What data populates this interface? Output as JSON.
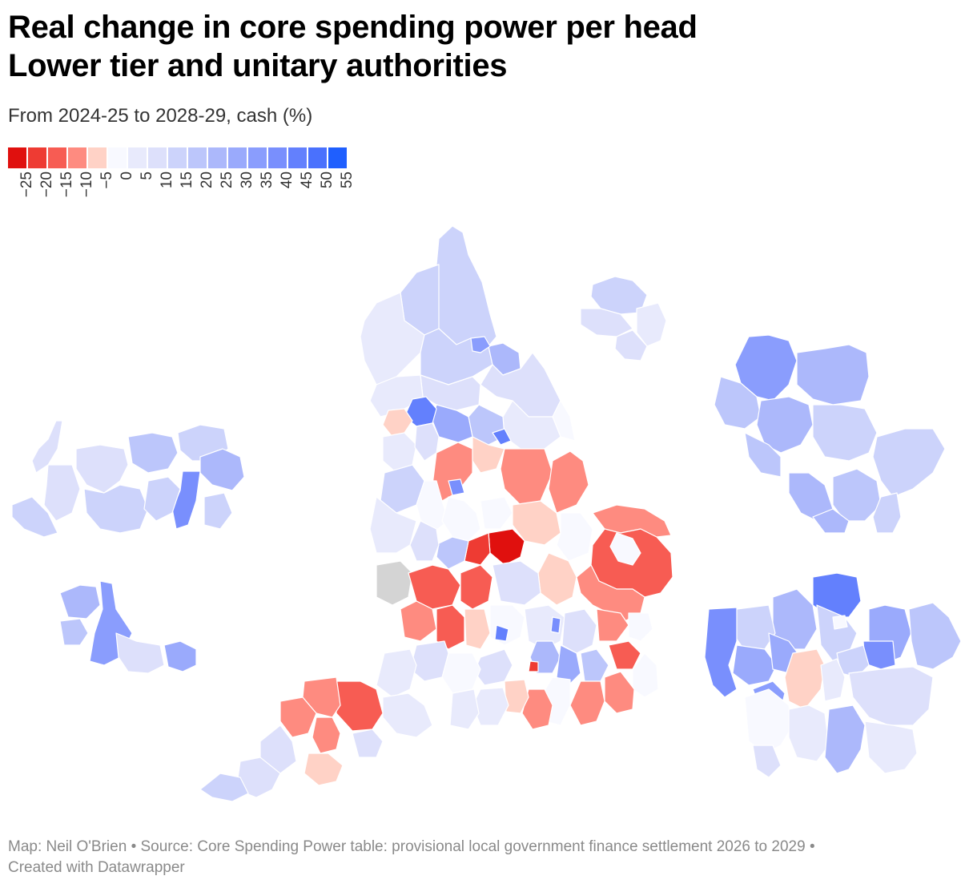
{
  "header": {
    "title_line1": "Real change in core spending power per head",
    "title_line2": "Lower tier and unitary authorities",
    "subtitle": "From 2024-25 to 2028-29, cash (%)"
  },
  "legend": {
    "bins": [
      {
        "label": "−25",
        "color": "#e0100e"
      },
      {
        "label": "−20",
        "color": "#ee3b33"
      },
      {
        "label": "−15",
        "color": "#f75c53"
      },
      {
        "label": "−10",
        "color": "#fe8b80"
      },
      {
        "label": "−5",
        "color": "#ffd2c6"
      },
      {
        "label": "0",
        "color": "#f8f9ff"
      },
      {
        "label": "5",
        "color": "#e8eafc"
      },
      {
        "label": "10",
        "color": "#dde0fb"
      },
      {
        "label": "15",
        "color": "#ccd3fb"
      },
      {
        "label": "20",
        "color": "#bcc6fb"
      },
      {
        "label": "25",
        "color": "#acb8fb"
      },
      {
        "label": "30",
        "color": "#9aaafc"
      },
      {
        "label": "35",
        "color": "#8a9dfd"
      },
      {
        "label": "40",
        "color": "#798ffd"
      },
      {
        "label": "45",
        "color": "#6380fd"
      },
      {
        "label": "50",
        "color": "#4a71fd"
      },
      {
        "label": "55",
        "color": "#1f5ffe"
      }
    ]
  },
  "map": {
    "no_data_color": "#d4d4d4"
  },
  "footer": {
    "line1": "Map: Neil O'Brien • Source: Core Spending Power table: provisional local government finance settlement 2026 to 2029  •",
    "line2": "Created with Datawrapper"
  }
}
